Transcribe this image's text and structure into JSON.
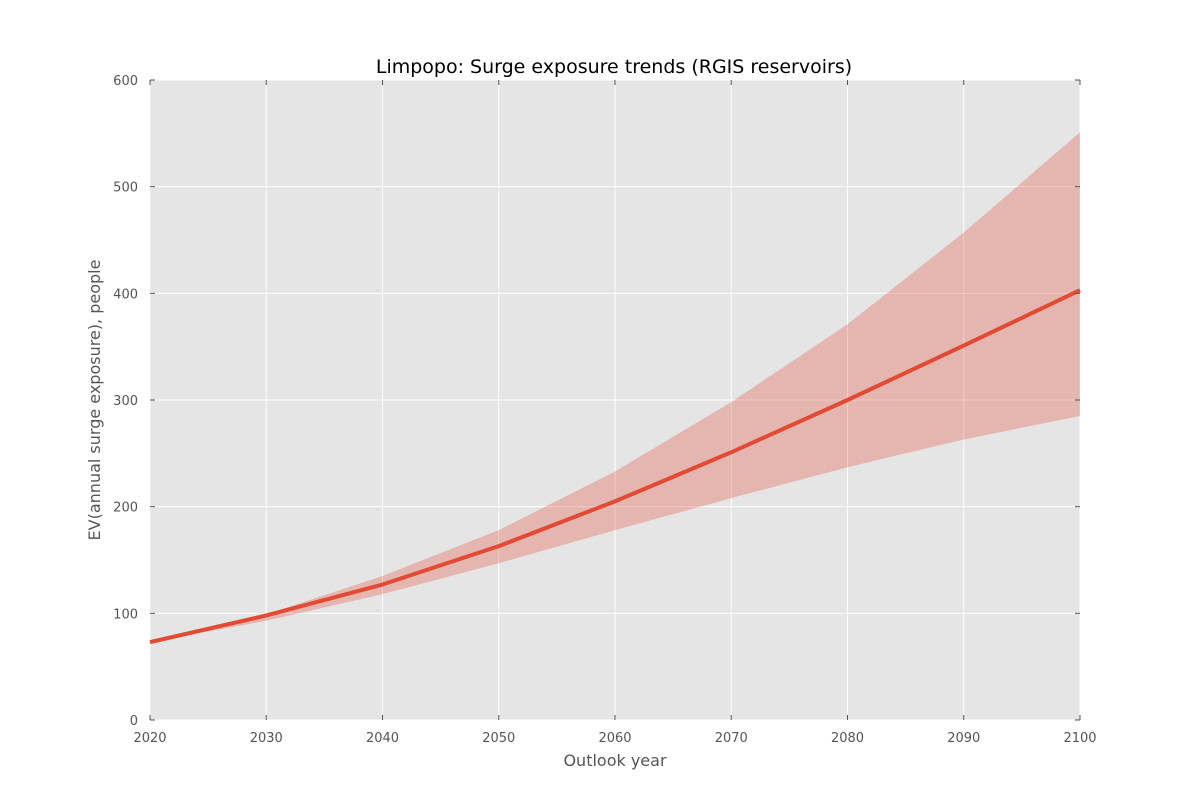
{
  "chart_data": {
    "type": "line",
    "title": "Limpopo: Surge exposure trends (RGIS reservoirs)",
    "xlabel": "Outlook year",
    "ylabel": "EV(annual surge exposure), people",
    "xlim": [
      2020,
      2100
    ],
    "ylim": [
      0,
      600
    ],
    "x_ticks": [
      2020,
      2030,
      2040,
      2050,
      2060,
      2070,
      2080,
      2090,
      2100
    ],
    "y_ticks": [
      0,
      100,
      200,
      300,
      400,
      500,
      600
    ],
    "grid": true,
    "legend": "none",
    "x": [
      2020,
      2030,
      2040,
      2050,
      2060,
      2070,
      2080,
      2090,
      2100
    ],
    "series": [
      {
        "values": [
          73,
          98,
          127,
          163,
          205,
          251,
          300,
          351,
          403
        ],
        "lower": [
          73,
          93,
          118,
          147,
          178,
          208,
          237,
          263,
          285
        ],
        "upper": [
          73,
          99,
          135,
          178,
          233,
          298,
          371,
          457,
          551
        ],
        "color": "#e24a33",
        "band_color": "#e24a33"
      }
    ],
    "colors": {
      "plot_background": "#e5e5e5",
      "grid": "#ffffff",
      "line": "#e24a33",
      "band": "#e24a33"
    }
  }
}
